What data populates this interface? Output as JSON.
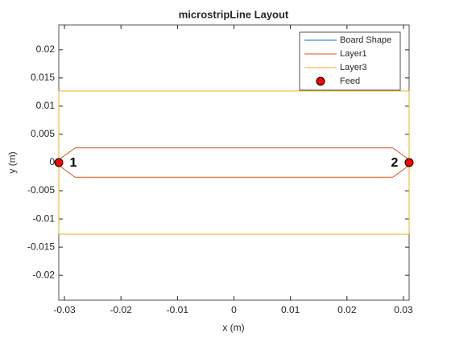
{
  "chart_data": {
    "type": "layout",
    "title": "microstripLine Layout",
    "x_label": "x (m)",
    "y_label": "y (m)",
    "xlim": [
      -0.031,
      0.031
    ],
    "ylim": [
      -0.0244,
      0.0244
    ],
    "xticks": [
      -0.03,
      -0.02,
      -0.01,
      0,
      0.01,
      0.02,
      0.03
    ],
    "yticks": [
      -0.02,
      -0.015,
      -0.01,
      -0.005,
      0,
      0.005,
      0.01,
      0.015,
      0.02
    ],
    "series": [
      {
        "name": "Board Shape",
        "color": "#0072bd",
        "kind": "line",
        "x": [
          -0.031,
          0.031,
          0.031,
          -0.031,
          -0.031
        ],
        "values": [
          -0.0127,
          -0.0127,
          0.0127,
          0.0127,
          -0.0127
        ]
      },
      {
        "name": "Layer1",
        "color": "#d95319",
        "kind": "line",
        "x": [
          -0.031,
          -0.0281,
          0.0281,
          0.031,
          0.031,
          0.0281,
          -0.0281,
          -0.031,
          -0.031
        ],
        "values": [
          0.0005,
          0.0026,
          0.0026,
          0.0005,
          -0.0005,
          -0.0026,
          -0.0026,
          -0.0005,
          0.0005
        ]
      },
      {
        "name": "Layer3",
        "color": "#edb120",
        "kind": "line",
        "x": [
          -0.031,
          0.031,
          0.031,
          -0.031,
          -0.031
        ],
        "values": [
          -0.0127,
          -0.0127,
          0.0127,
          0.0127,
          -0.0127
        ]
      },
      {
        "name": "Feed",
        "color": "#ff0000",
        "kind": "marker",
        "x": [
          -0.031,
          0.031
        ],
        "values": [
          0,
          0
        ],
        "labels": [
          "1",
          "2"
        ]
      }
    ]
  }
}
